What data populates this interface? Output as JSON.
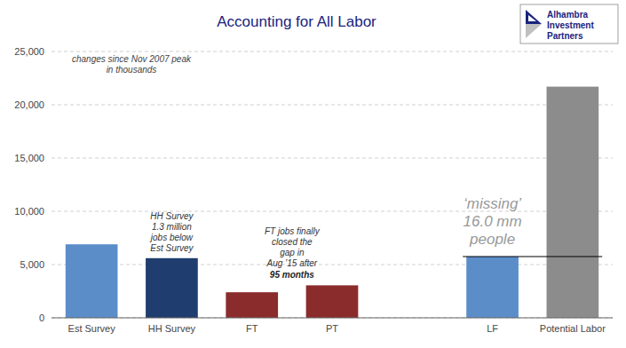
{
  "chart_data": {
    "type": "bar",
    "title": "Accounting for All Labor",
    "subtitle": "changes since Nov 2007 peak\n     in thousands",
    "categories": [
      "Est Survey",
      "HH Survey",
      "FT",
      "PT",
      null,
      "LF",
      "Potential Labor"
    ],
    "values": [
      6900,
      5600,
      2400,
      3050,
      null,
      5750,
      21700
    ],
    "colors": [
      "#5b8dc9",
      "#1f3d6e",
      "#8b2c2c",
      "#8b2c2c",
      null,
      "#5b8dc9",
      "#8c8c8c"
    ],
    "reference_line": 5750,
    "ylim": [
      0,
      25000
    ],
    "yticks": [
      0,
      {
        "value": 5000,
        "label": "5,000"
      },
      {
        "value": 10000,
        "label": "10,000"
      },
      {
        "value": 15000,
        "label": "15,000"
      },
      {
        "value": 20000,
        "label": "20,000"
      },
      {
        "value": 25000,
        "label": "25,000"
      }
    ],
    "grid": true,
    "annotations": [
      "HH Survey\n1.3 million\njobs below\nEst Survey",
      "FT jobs finally\nclosed the\ngap in\nAug ’15 after",
      "95 months",
      "‘missing’\n16.0 mm\npeople"
    ],
    "logo_text": [
      "Alhambra",
      "Investment",
      "Partners"
    ]
  }
}
